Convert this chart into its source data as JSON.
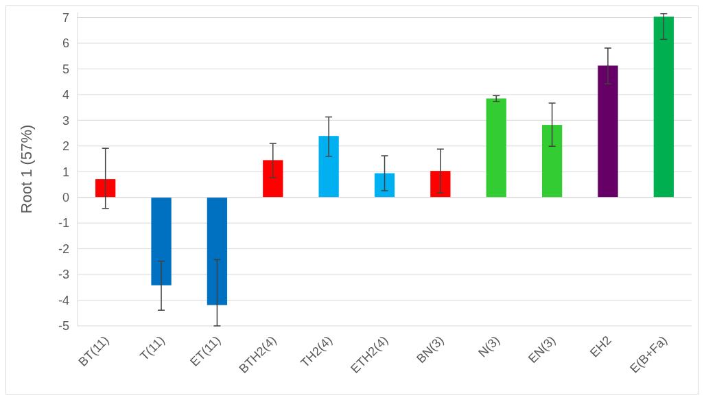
{
  "chart_data": {
    "type": "bar",
    "ylabel": "Root 1 (57%)",
    "categories": [
      "BT(11)",
      "T(11)",
      "ET(11)",
      "BTH2(4)",
      "TH2(4)",
      "ETH2(4)",
      "BN(3)",
      "N(3)",
      "EN(3)",
      "EH2",
      "E(B+Fa)"
    ],
    "values": [
      0.71,
      -3.42,
      -4.19,
      1.45,
      2.39,
      0.94,
      1.03,
      3.85,
      2.82,
      5.13,
      7.03
    ],
    "errors": [
      [
        -0.43,
        1.91
      ],
      [
        -4.39,
        -2.48
      ],
      [
        -5.0,
        -2.42
      ],
      [
        0.77,
        2.1
      ],
      [
        1.6,
        3.13
      ],
      [
        0.26,
        1.62
      ],
      [
        0.17,
        1.88
      ],
      [
        3.73,
        3.96
      ],
      [
        1.99,
        3.67
      ],
      [
        4.42,
        5.81
      ],
      [
        6.15,
        7.15
      ]
    ],
    "colors": [
      "#ff0000",
      "#0070c0",
      "#0070c0",
      "#ff0000",
      "#00b0f0",
      "#00b0f0",
      "#ff0000",
      "#33cc33",
      "#33cc33",
      "#660066",
      "#00b050"
    ],
    "ylim": [
      -5,
      7.2
    ],
    "yticks": [
      -5,
      -4,
      -3,
      -2,
      -1,
      0,
      1,
      2,
      3,
      4,
      5,
      6,
      7
    ],
    "grid": "y"
  }
}
